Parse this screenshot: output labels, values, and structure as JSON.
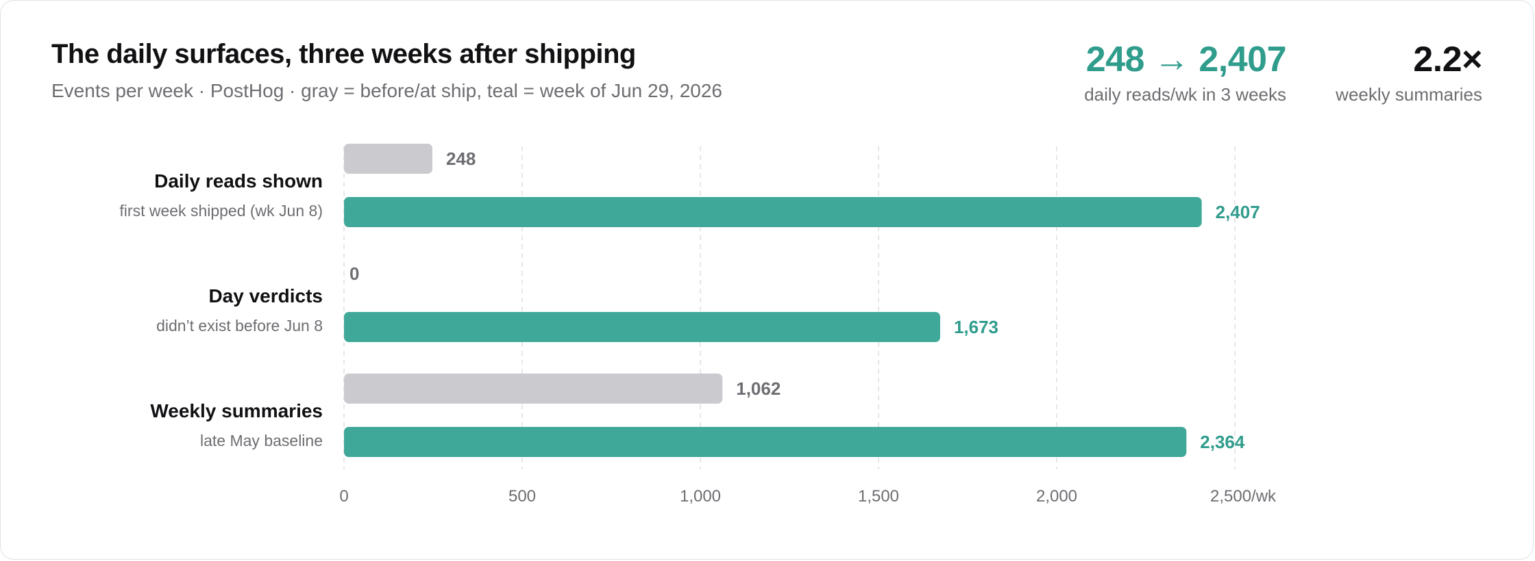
{
  "header": {
    "title": "The daily surfaces, three weeks after shipping",
    "subtitle": "Events per week · PostHog · gray = before/at ship, teal = week of Jun 29, 2026"
  },
  "stats": [
    {
      "value": "248 → 2,407",
      "label": "daily reads/wk in 3 weeks"
    },
    {
      "value": "2.2×",
      "label": "weekly summaries"
    }
  ],
  "rows": [
    {
      "name": "Daily reads shown",
      "note": "first week shipped (wk Jun 8)"
    },
    {
      "name": "Day verdicts",
      "note": "didn’t exist before Jun 8"
    },
    {
      "name": "Weekly summaries",
      "note": "late May baseline"
    }
  ],
  "colors": {
    "before": "#cbcbcf",
    "after": "#3fa898",
    "after_text": "#2f9c8c",
    "grid": "#dedee2"
  },
  "chart_data": {
    "type": "bar",
    "orientation": "horizontal",
    "categories": [
      "Daily reads shown",
      "Day verdicts",
      "Weekly summaries"
    ],
    "series": [
      {
        "values": [
          248,
          0,
          1062
        ],
        "labels": [
          "248",
          "0",
          "1,062"
        ],
        "color": "#cbcbcf"
      },
      {
        "values": [
          2407,
          1673,
          2364
        ],
        "labels": [
          "2,407",
          "1,673",
          "2,364"
        ],
        "color": "#3fa898"
      }
    ],
    "xlim": [
      0,
      2500
    ],
    "xticks": [
      0,
      500,
      1000,
      1500,
      2000,
      2500
    ],
    "xtick_labels": [
      "0",
      "500",
      "1,000",
      "1,500",
      "2,000",
      "2,500/wk"
    ],
    "grid": true
  }
}
